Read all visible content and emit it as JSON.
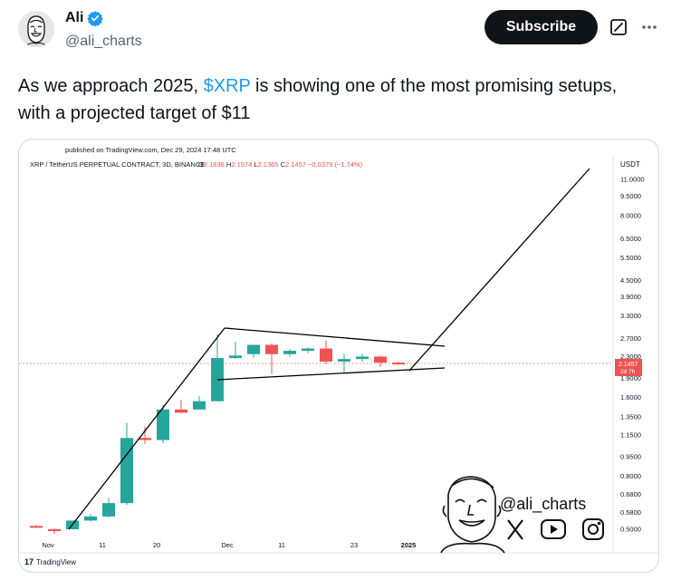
{
  "author": {
    "name": "Ali",
    "handle": "@ali_charts",
    "avatar_icon": "cartoon-face-avatar",
    "verified_icon": "verified-badge-icon"
  },
  "header": {
    "subscribe_label": "Subscribe",
    "grok_icon": "grok-icon",
    "more_icon": "more-options-icon"
  },
  "tweet": {
    "text_before": "As we approach 2025, ",
    "cashtag": "$XRP",
    "text_after": " is showing one of the most promising setups, with a projected target of $11"
  },
  "chart": {
    "published_text": "published on TradingView.com, Dec 29, 2024 17:48 UTC",
    "symbol_text": "XRP / TetherUS PERPETUAL CONTRACT, 3D, BINANCE",
    "ohlc": {
      "o_label": "O",
      "o": "2.1836",
      "h_label": "H",
      "h": "2.1974",
      "l_label": "L",
      "l": "2.1365",
      "c_label": "C",
      "c": "2.1457",
      "change": "−0.0379 (−1.74%)"
    },
    "currency": "USDT",
    "price_badge": "2.1457",
    "time_badge": "2d 7h",
    "footer_brand": "TradingView",
    "watermark_handle": "@ali_charts",
    "watermark_icons": [
      "x-logo-icon",
      "youtube-icon",
      "instagram-icon"
    ],
    "colors": {
      "up": "#26a69a",
      "down": "#ef5350",
      "line": "#000000",
      "badge": "#ef5350"
    }
  },
  "chart_data": {
    "type": "candlestick",
    "title": "XRP / TetherUS PERPETUAL CONTRACT, 3D, BINANCE",
    "y_scale": "log",
    "y_ticks": [
      "11.0000",
      "9.5000",
      "8.0000",
      "6.5000",
      "5.5000",
      "4.5000",
      "3.9000",
      "3.3000",
      "2.7000",
      "2.3000",
      "1.9000",
      "1.6000",
      "1.3500",
      "1.1500",
      "0.9500",
      "0.8000",
      "0.6800",
      "0.5800",
      "0.5000"
    ],
    "x_ticks": [
      "Nov",
      "11",
      "20",
      "Dec",
      "11",
      "23",
      "2025"
    ],
    "candles": [
      {
        "o": 0.515,
        "h": 0.52,
        "l": 0.505,
        "c": 0.51
      },
      {
        "o": 0.5,
        "h": 0.505,
        "l": 0.48,
        "c": 0.495
      },
      {
        "o": 0.5,
        "h": 0.54,
        "l": 0.5,
        "c": 0.54
      },
      {
        "o": 0.54,
        "h": 0.57,
        "l": 0.535,
        "c": 0.56
      },
      {
        "o": 0.56,
        "h": 0.66,
        "l": 0.555,
        "c": 0.63
      },
      {
        "o": 0.63,
        "h": 1.28,
        "l": 0.62,
        "c": 1.12
      },
      {
        "o": 1.12,
        "h": 1.24,
        "l": 1.06,
        "c": 1.1
      },
      {
        "o": 1.1,
        "h": 1.5,
        "l": 1.07,
        "c": 1.44
      },
      {
        "o": 1.44,
        "h": 1.57,
        "l": 1.4,
        "c": 1.4
      },
      {
        "o": 1.44,
        "h": 1.62,
        "l": 1.44,
        "c": 1.55
      },
      {
        "o": 1.55,
        "h": 2.8,
        "l": 1.55,
        "c": 2.27
      },
      {
        "o": 2.27,
        "h": 2.62,
        "l": 2.25,
        "c": 2.32
      },
      {
        "o": 2.35,
        "h": 2.55,
        "l": 2.28,
        "c": 2.55
      },
      {
        "o": 2.55,
        "h": 2.58,
        "l": 1.97,
        "c": 2.35
      },
      {
        "o": 2.35,
        "h": 2.45,
        "l": 2.3,
        "c": 2.42
      },
      {
        "o": 2.42,
        "h": 2.5,
        "l": 2.37,
        "c": 2.47
      },
      {
        "o": 2.47,
        "h": 2.65,
        "l": 2.15,
        "c": 2.2
      },
      {
        "o": 2.2,
        "h": 2.35,
        "l": 1.98,
        "c": 2.25
      },
      {
        "o": 2.25,
        "h": 2.35,
        "l": 2.2,
        "c": 2.3
      },
      {
        "o": 2.3,
        "h": 2.32,
        "l": 2.1,
        "c": 2.18
      },
      {
        "o": 2.18,
        "h": 2.2,
        "l": 2.14,
        "c": 2.1457
      }
    ],
    "current_price": 2.1457,
    "projected_target": 11
  }
}
